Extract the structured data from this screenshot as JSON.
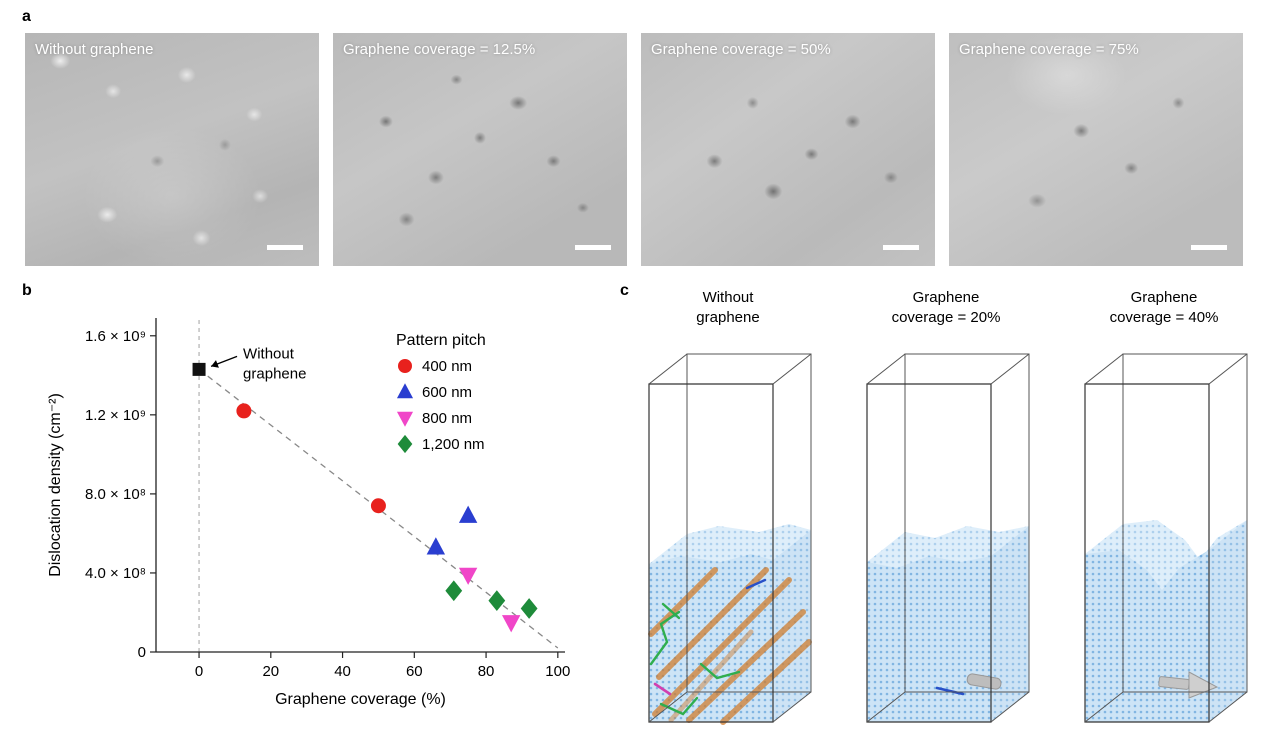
{
  "figure": {
    "panel_a": {
      "label": "a",
      "images": [
        {
          "label": "Without graphene"
        },
        {
          "label": "Graphene coverage = 12.5%"
        },
        {
          "label": "Graphene coverage = 50%"
        },
        {
          "label": "Graphene coverage = 75%"
        }
      ]
    },
    "panel_b": {
      "label": "b"
    },
    "panel_c": {
      "label": "c",
      "boxes": [
        {
          "label": "Without\ngraphene"
        },
        {
          "label": "Graphene\ncoverage = 20%"
        },
        {
          "label": "Graphene\ncoverage = 40%"
        }
      ]
    }
  },
  "chart_data": {
    "type": "scatter",
    "xlabel": "Graphene coverage (%)",
    "ylabel": "Dislocation density (cm⁻²)",
    "xlim": [
      -12,
      102
    ],
    "ylim": [
      0,
      1690000000.0
    ],
    "xticks": [
      0,
      20,
      40,
      60,
      80,
      100
    ],
    "yticks": [
      0,
      400000000.0,
      800000000.0,
      1200000000.0,
      1600000000.0
    ],
    "ytick_labels": [
      "0",
      "4.0 × 10⁸",
      "8.0 × 10⁸",
      "1.2 × 10⁹",
      "1.6 × 10⁹"
    ],
    "legend_title": "Pattern pitch",
    "legend_position": "upper right",
    "grid": false,
    "series": [
      {
        "name": "Without graphene",
        "marker": "square",
        "color": "#111111",
        "in_legend": false,
        "points": [
          [
            0,
            1430000000.0
          ]
        ]
      },
      {
        "name": "400 nm",
        "marker": "circle",
        "color": "#e8211d",
        "in_legend": true,
        "points": [
          [
            12.5,
            1220000000.0
          ],
          [
            50,
            740000000.0
          ]
        ]
      },
      {
        "name": "600 nm",
        "marker": "triangle-up",
        "color": "#2a3ed0",
        "in_legend": true,
        "points": [
          [
            66,
            530000000.0
          ],
          [
            75,
            690000000.0
          ]
        ]
      },
      {
        "name": "800 nm",
        "marker": "triangle-down",
        "color": "#f046c8",
        "in_legend": true,
        "points": [
          [
            75,
            390000000.0
          ],
          [
            87,
            150000000.0
          ]
        ]
      },
      {
        "name": "1,200 nm",
        "marker": "diamond",
        "color": "#1e8b3a",
        "in_legend": true,
        "points": [
          [
            71,
            310000000.0
          ],
          [
            83,
            260000000.0
          ],
          [
            92,
            220000000.0
          ]
        ]
      }
    ],
    "trendline": {
      "x1": 0,
      "y1": 1430000000.0,
      "x2": 100,
      "y2": 20000000.0,
      "style": "dashed",
      "color": "#888888"
    },
    "vline": {
      "x": 0,
      "style": "dashed",
      "color": "#aaaaaa"
    },
    "annotation": {
      "lines": [
        "Without",
        "graphene"
      ],
      "arrow_to": [
        0,
        1430000000.0
      ]
    }
  }
}
